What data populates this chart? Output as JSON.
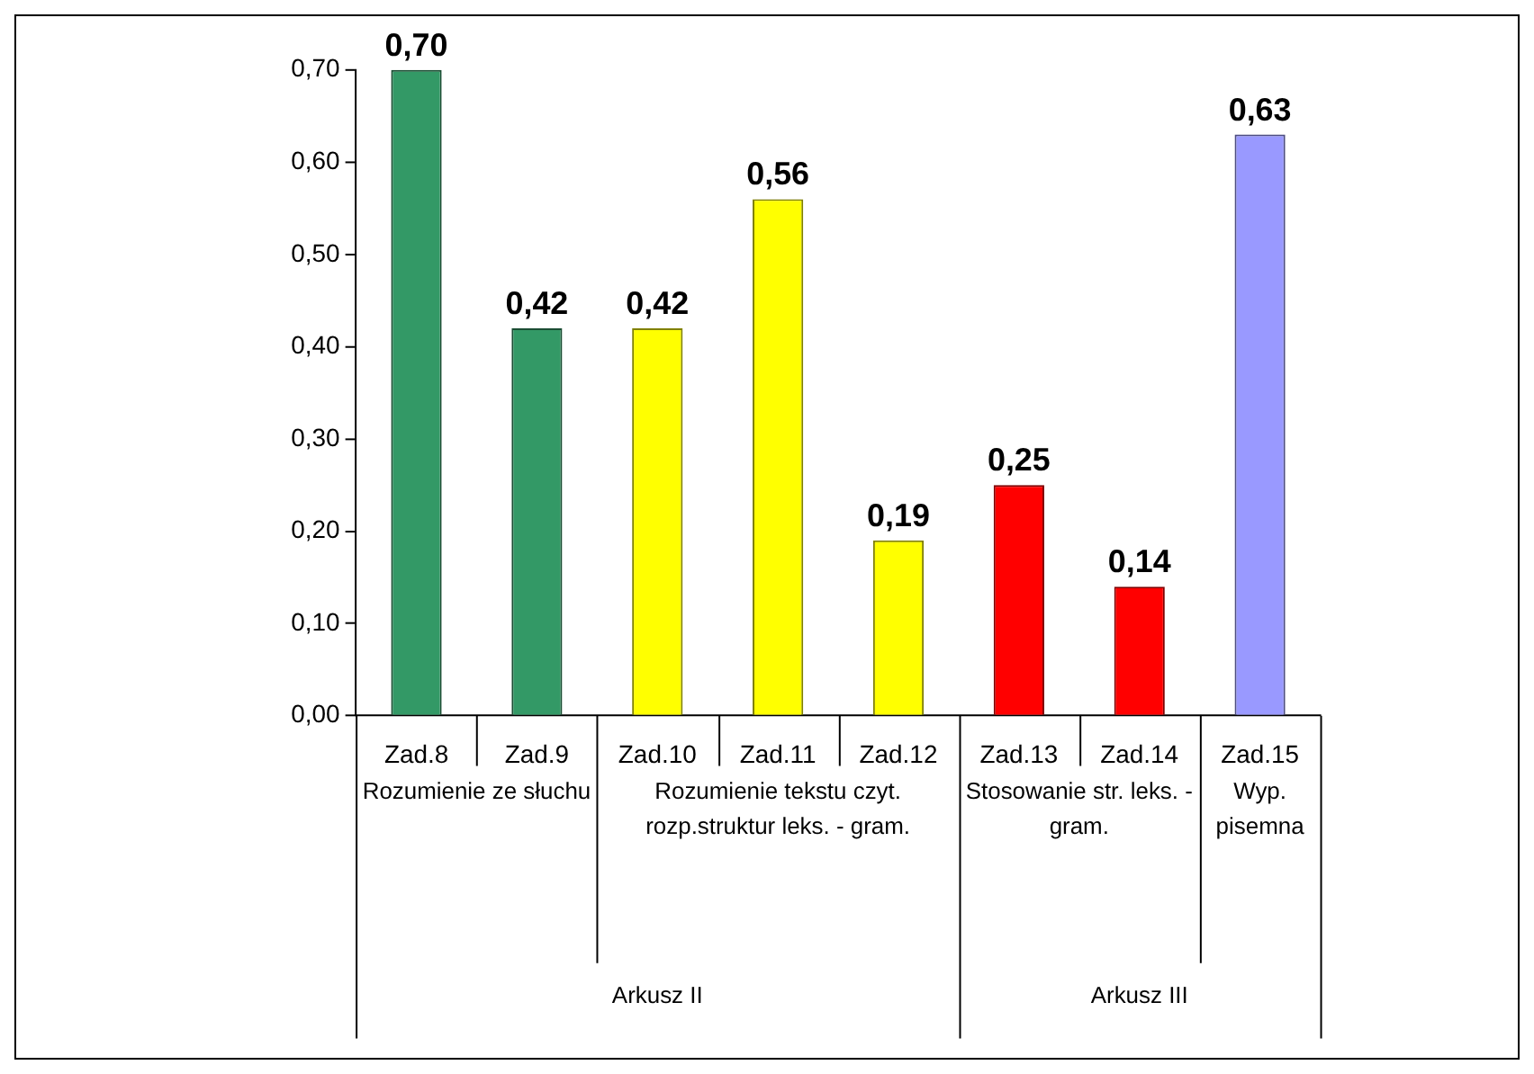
{
  "chart_data": {
    "type": "bar",
    "categories": [
      "Zad.8",
      "Zad.9",
      "Zad.10",
      "Zad.11",
      "Zad.12",
      "Zad.13",
      "Zad.14",
      "Zad.15"
    ],
    "values": [
      0.7,
      0.42,
      0.42,
      0.56,
      0.19,
      0.25,
      0.14,
      0.63
    ],
    "colors": [
      "#339966",
      "#339966",
      "#ffff00",
      "#ffff00",
      "#ffff00",
      "#ff0000",
      "#ff0000",
      "#9999ff"
    ],
    "value_labels": [
      "0,70",
      "0,42",
      "0,42",
      "0,56",
      "0,19",
      "0,25",
      "0,14",
      "0,63"
    ],
    "ylim": [
      0,
      0.7
    ],
    "yticks": [
      {
        "value": 0,
        "label": "0,00"
      },
      {
        "value": 0.1,
        "label": "0,10"
      },
      {
        "value": 0.2,
        "label": "0,20"
      },
      {
        "value": 0.3,
        "label": "0,30"
      },
      {
        "value": 0.4,
        "label": "0,40"
      },
      {
        "value": 0.5,
        "label": "0,50"
      },
      {
        "value": 0.6,
        "label": "0,60"
      },
      {
        "value": 0.7,
        "label": "0,70"
      }
    ],
    "annotations": [
      "Rozumienie ze słuchu",
      "Rozumienie tekstu czyt. rozp.struktur leks. - gram.",
      "Stosowanie str. leks. - gram.",
      "Wyp. pisemna",
      "Arkusz II",
      "Arkusz III"
    ]
  }
}
